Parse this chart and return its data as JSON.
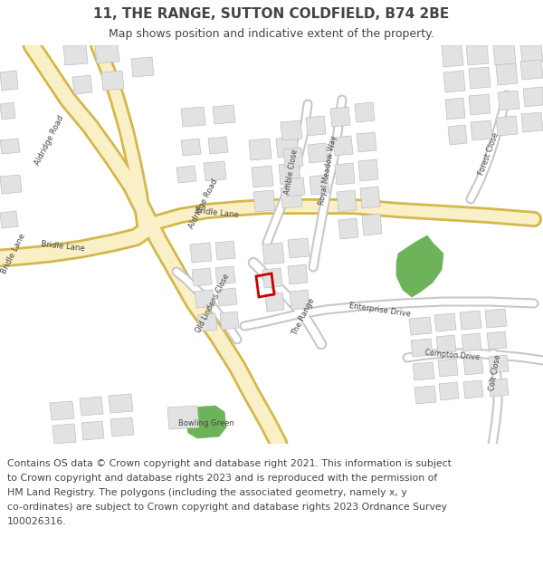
{
  "title": "11, THE RANGE, SUTTON COLDFIELD, B74 2BE",
  "subtitle": "Map shows position and indicative extent of the property.",
  "footer_lines": [
    "Contains OS data © Crown copyright and database right 2021. This information is subject",
    "to Crown copyright and database rights 2023 and is reproduced with the permission of",
    "HM Land Registry. The polygons (including the associated geometry, namely x, y",
    "co-ordinates) are subject to Crown copyright and database rights 2023 Ordnance Survey",
    "100026316."
  ],
  "bg_color": "#ffffff",
  "map_bg": "#f7f7f7",
  "road_major_fill": "#faf0c8",
  "road_major_edge": "#d4b84a",
  "road_minor_fill": "#ffffff",
  "road_minor_edge": "#c8c8c8",
  "building_fill": "#e2e2e2",
  "building_edge": "#c0c0c0",
  "green_fill": "#6db35a",
  "property_edge": "#cc0000",
  "text_color": "#444444",
  "title_fontsize": 11,
  "subtitle_fontsize": 9,
  "footer_fontsize": 7.8,
  "label_fontsize": 6.5
}
